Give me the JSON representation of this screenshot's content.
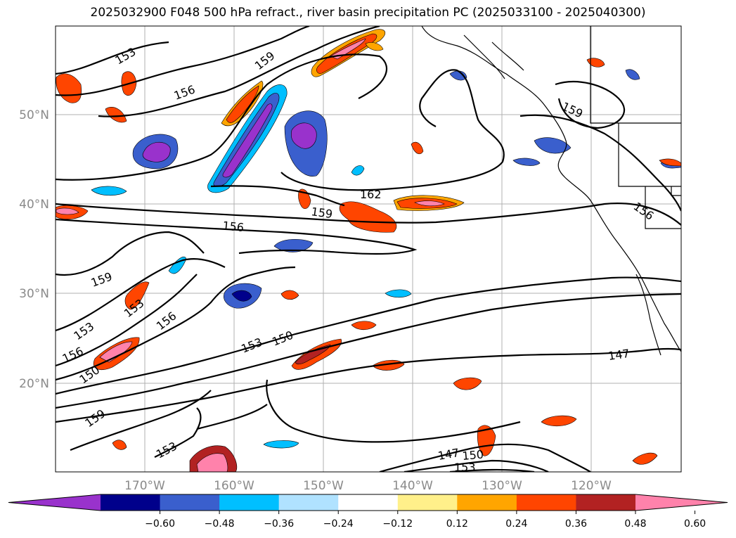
{
  "title": "2025032900 F048 500 hPa refract., river basin precipitation PC (2025033100 - 2025040300)",
  "axes": {
    "lat_labels": [
      "50°N",
      "40°N",
      "30°N",
      "20°N"
    ],
    "lon_labels": [
      "170°W",
      "160°W",
      "150°W",
      "140°W",
      "130°W",
      "120°W"
    ]
  },
  "contour_labels": [
    "153",
    "159",
    "156",
    "159",
    "162",
    "159",
    "156",
    "156",
    "159",
    "153",
    "153",
    "156",
    "156",
    "150",
    "159",
    "153",
    "150",
    "153",
    "147",
    "147",
    "150",
    "153"
  ],
  "colorbar": {
    "ticks": [
      "−0.60",
      "−0.48",
      "−0.36",
      "−0.24",
      "−0.12",
      "0.12",
      "0.24",
      "0.36",
      "0.48",
      "0.60"
    ],
    "colors": [
      "#9932cc",
      "#00008b",
      "#3a5fcd",
      "#00bfff",
      "#b0e2ff",
      "#ffffff",
      "#fff08a",
      "#ffa500",
      "#ff4500",
      "#b22222",
      "#ff82ab"
    ]
  }
}
